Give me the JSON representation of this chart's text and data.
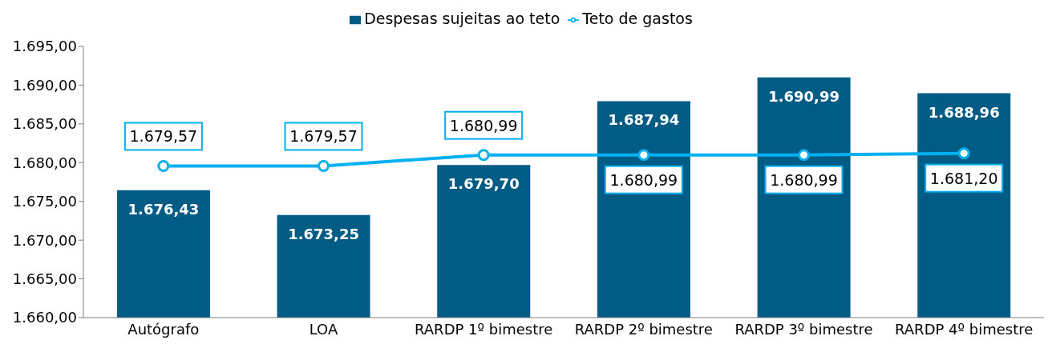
{
  "chart_data": {
    "type": "bar",
    "categories": [
      "Autógrafo",
      "LOA",
      "RARDP 1º bimestre",
      "RARDP 2º bimestre",
      "RARDP 3º bimestre",
      "RARDP 4º bimestre"
    ],
    "series": [
      {
        "name": "Despesas sujeitas ao teto",
        "color": "#005b85",
        "values": [
          1676.43,
          1673.25,
          1679.7,
          1687.94,
          1690.99,
          1688.96
        ],
        "value_labels": [
          "1.676,43",
          "1.673,25",
          "1.679,70",
          "1.687,94",
          "1.690,99",
          "1.688,96"
        ]
      },
      {
        "name": "Teto de gastos",
        "type": "line",
        "color": "#00b0f0",
        "values": [
          1679.57,
          1679.57,
          1680.99,
          1680.99,
          1680.99,
          1681.2
        ],
        "value_labels": [
          "1.679,57",
          "1.679,57",
          "1.680,99",
          "1.680,99",
          "1.680,99",
          "1.681,20"
        ]
      }
    ],
    "ylim": [
      1660,
      1695
    ],
    "yticks": [
      {
        "value": 1660,
        "label": "1.660,00"
      },
      {
        "value": 1665,
        "label": "1.665,00"
      },
      {
        "value": 1670,
        "label": "1.670,00"
      },
      {
        "value": 1675,
        "label": "1.675,00"
      },
      {
        "value": 1680,
        "label": "1.680,00"
      },
      {
        "value": 1685,
        "label": "1.685,00"
      },
      {
        "value": 1690,
        "label": "1.690,00"
      },
      {
        "value": 1695,
        "label": "1.695,00"
      }
    ],
    "grid": false,
    "legend": "top",
    "marker": "circle",
    "line_style": "solid"
  }
}
